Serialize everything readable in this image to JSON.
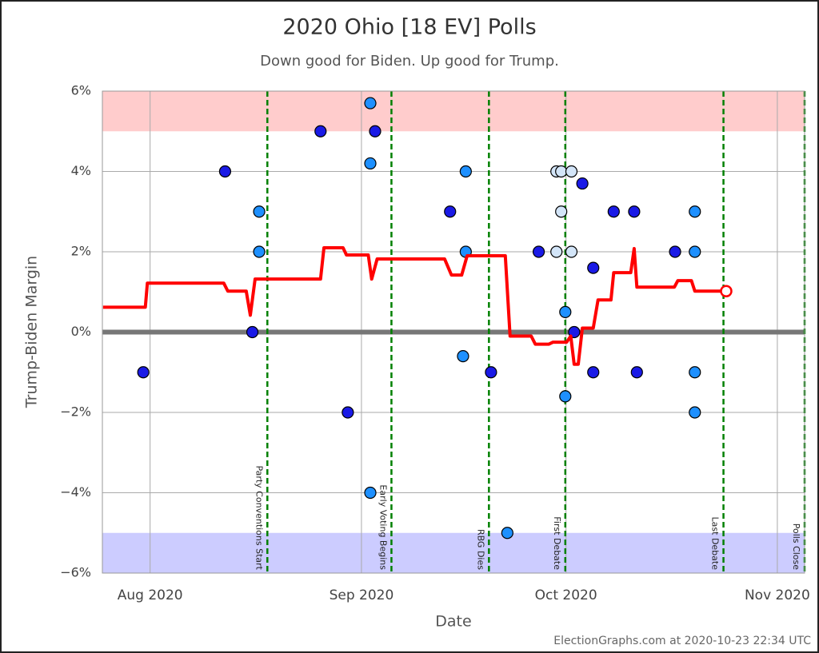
{
  "chart_data": {
    "type": "scatter",
    "title": "2020 Ohio [18 EV] Polls",
    "subtitle": "Down good for Biden. Up good for Trump.",
    "xlabel": "Date",
    "ylabel": "Trump-Biden Margin",
    "xlim": [
      207,
      310
    ],
    "xticks": [
      {
        "value": 214,
        "label": "Aug 2020"
      },
      {
        "value": 245,
        "label": "Sep 2020"
      },
      {
        "value": 275,
        "label": "Oct 2020"
      },
      {
        "value": 306,
        "label": "Nov 2020"
      }
    ],
    "ylim": [
      -6,
      6
    ],
    "yticks": [
      {
        "value": -6,
        "label": "−6%"
      },
      {
        "value": -4,
        "label": "−4%"
      },
      {
        "value": -2,
        "label": "−2%"
      },
      {
        "value": 0,
        "label": "0%"
      },
      {
        "value": 2,
        "label": "2%"
      },
      {
        "value": 4,
        "label": "4%"
      },
      {
        "value": 6,
        "label": "6%"
      }
    ],
    "grid": true,
    "zero_line": true,
    "bands": [
      {
        "from": 5,
        "to": 6,
        "color": "#ffcccc"
      },
      {
        "from": -6,
        "to": -5,
        "color": "#ccccff"
      }
    ],
    "series": [
      {
        "type": "line",
        "color": "#ff0000",
        "x": [
          207.1,
          213.3,
          213.6,
          224.8,
          225.4,
          228.1,
          228.7,
          229.4,
          239.0,
          239.5,
          242.3,
          242.8,
          246.0,
          246.5,
          247.3,
          257.2,
          258.2,
          259.7,
          260.5,
          266.1,
          266.8,
          269.9,
          270.5,
          272.5,
          273.1,
          275.1,
          275.7,
          276.2,
          276.8,
          277.4,
          279.0,
          279.7,
          281.6,
          282.0,
          284.5,
          285.0,
          285.4,
          290.9,
          291.4,
          293.4,
          293.9,
          298.5
        ],
        "values": [
          0.62,
          0.62,
          1.22,
          1.22,
          1.02,
          1.02,
          0.42,
          1.32,
          1.32,
          2.1,
          2.1,
          1.92,
          1.92,
          1.32,
          1.82,
          1.82,
          1.42,
          1.42,
          1.9,
          1.9,
          -0.1,
          -0.1,
          -0.3,
          -0.3,
          -0.25,
          -0.25,
          -0.1,
          -0.8,
          -0.8,
          0.1,
          0.1,
          0.8,
          0.8,
          1.48,
          1.48,
          2.08,
          1.12,
          1.12,
          1.28,
          1.28,
          1.02,
          1.02
        ]
      },
      {
        "type": "scatter",
        "color": "#1a1ae6",
        "x": [
          213,
          225,
          229,
          239,
          243,
          247,
          258,
          264,
          271,
          276.2,
          277.4,
          279,
          279,
          282,
          285,
          285.4,
          291
        ],
        "values": [
          -1,
          4,
          0,
          5,
          -2,
          5,
          3,
          -1,
          2,
          0,
          3.7,
          1.6,
          -1,
          3,
          3,
          -1,
          2
        ]
      },
      {
        "type": "scatter",
        "color": "#1e90ff",
        "x": [
          230,
          230,
          246.3,
          246.3,
          246.3,
          259.9,
          260.3,
          260.3,
          266.4,
          274.9,
          274.9,
          293.9,
          293.9,
          293.9,
          293.9
        ],
        "values": [
          3,
          2,
          5.7,
          4.2,
          -4,
          -0.6,
          4,
          2,
          -5,
          0.5,
          -1.6,
          3,
          2,
          -1,
          -2
        ]
      },
      {
        "type": "scatter",
        "color": "#d3e5f8",
        "x": [
          273.6,
          273.6,
          274.3,
          274.3,
          275.8,
          275.8
        ],
        "values": [
          4,
          2,
          4,
          3,
          4,
          2
        ]
      }
    ],
    "events": [
      {
        "x": 231.2,
        "label": "Party Conventions Start"
      },
      {
        "x": 249.4,
        "label": "Early Voting Begins"
      },
      {
        "x": 263.7,
        "label": "RBG Dies"
      },
      {
        "x": 274.9,
        "label": "First Debate"
      },
      {
        "x": 298.1,
        "label": "Last Debate"
      },
      {
        "x": 310,
        "label": "Polls Close"
      }
    ],
    "footer": "ElectionGraphs.com at 2020-10-23 22:34 UTC"
  }
}
